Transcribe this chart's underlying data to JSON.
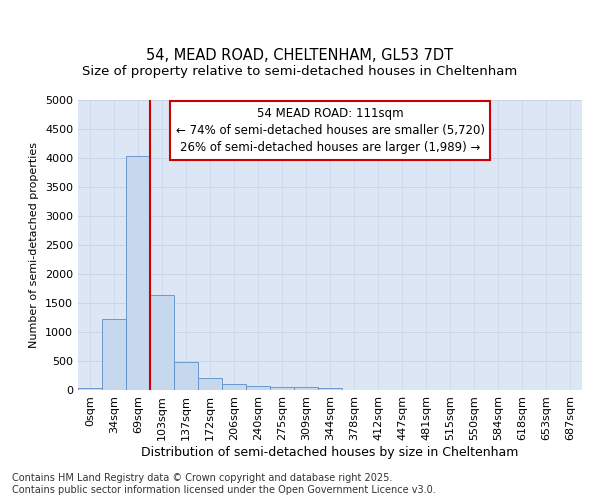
{
  "title1": "54, MEAD ROAD, CHELTENHAM, GL53 7DT",
  "title2": "Size of property relative to semi-detached houses in Cheltenham",
  "xlabel": "Distribution of semi-detached houses by size in Cheltenham",
  "ylabel": "Number of semi-detached properties",
  "categories": [
    "0sqm",
    "34sqm",
    "69sqm",
    "103sqm",
    "137sqm",
    "172sqm",
    "206sqm",
    "240sqm",
    "275sqm",
    "309sqm",
    "344sqm",
    "378sqm",
    "412sqm",
    "447sqm",
    "481sqm",
    "515sqm",
    "550sqm",
    "584sqm",
    "618sqm",
    "653sqm",
    "687sqm"
  ],
  "values": [
    30,
    1230,
    4040,
    1630,
    480,
    200,
    110,
    70,
    55,
    55,
    30,
    0,
    0,
    0,
    0,
    0,
    0,
    0,
    0,
    0,
    0
  ],
  "bar_color": "#c5d8ee",
  "bar_edge_color": "#5b8fc9",
  "vline_color": "#cc0000",
  "annotation_line1": "54 MEAD ROAD: 111sqm",
  "annotation_line2": "← 74% of semi-detached houses are smaller (5,720)",
  "annotation_line3": "26% of semi-detached houses are larger (1,989) →",
  "annotation_box_color": "#ffffff",
  "annotation_box_edge": "#cc0000",
  "ylim": [
    0,
    5000
  ],
  "yticks": [
    0,
    500,
    1000,
    1500,
    2000,
    2500,
    3000,
    3500,
    4000,
    4500,
    5000
  ],
  "grid_color": "#c8d4e8",
  "background_color": "#dce6f5",
  "footer_text": "Contains HM Land Registry data © Crown copyright and database right 2025.\nContains public sector information licensed under the Open Government Licence v3.0.",
  "title1_fontsize": 10.5,
  "title2_fontsize": 9.5,
  "xlabel_fontsize": 9,
  "ylabel_fontsize": 8,
  "tick_fontsize": 8,
  "annotation_fontsize": 8.5,
  "footer_fontsize": 7
}
